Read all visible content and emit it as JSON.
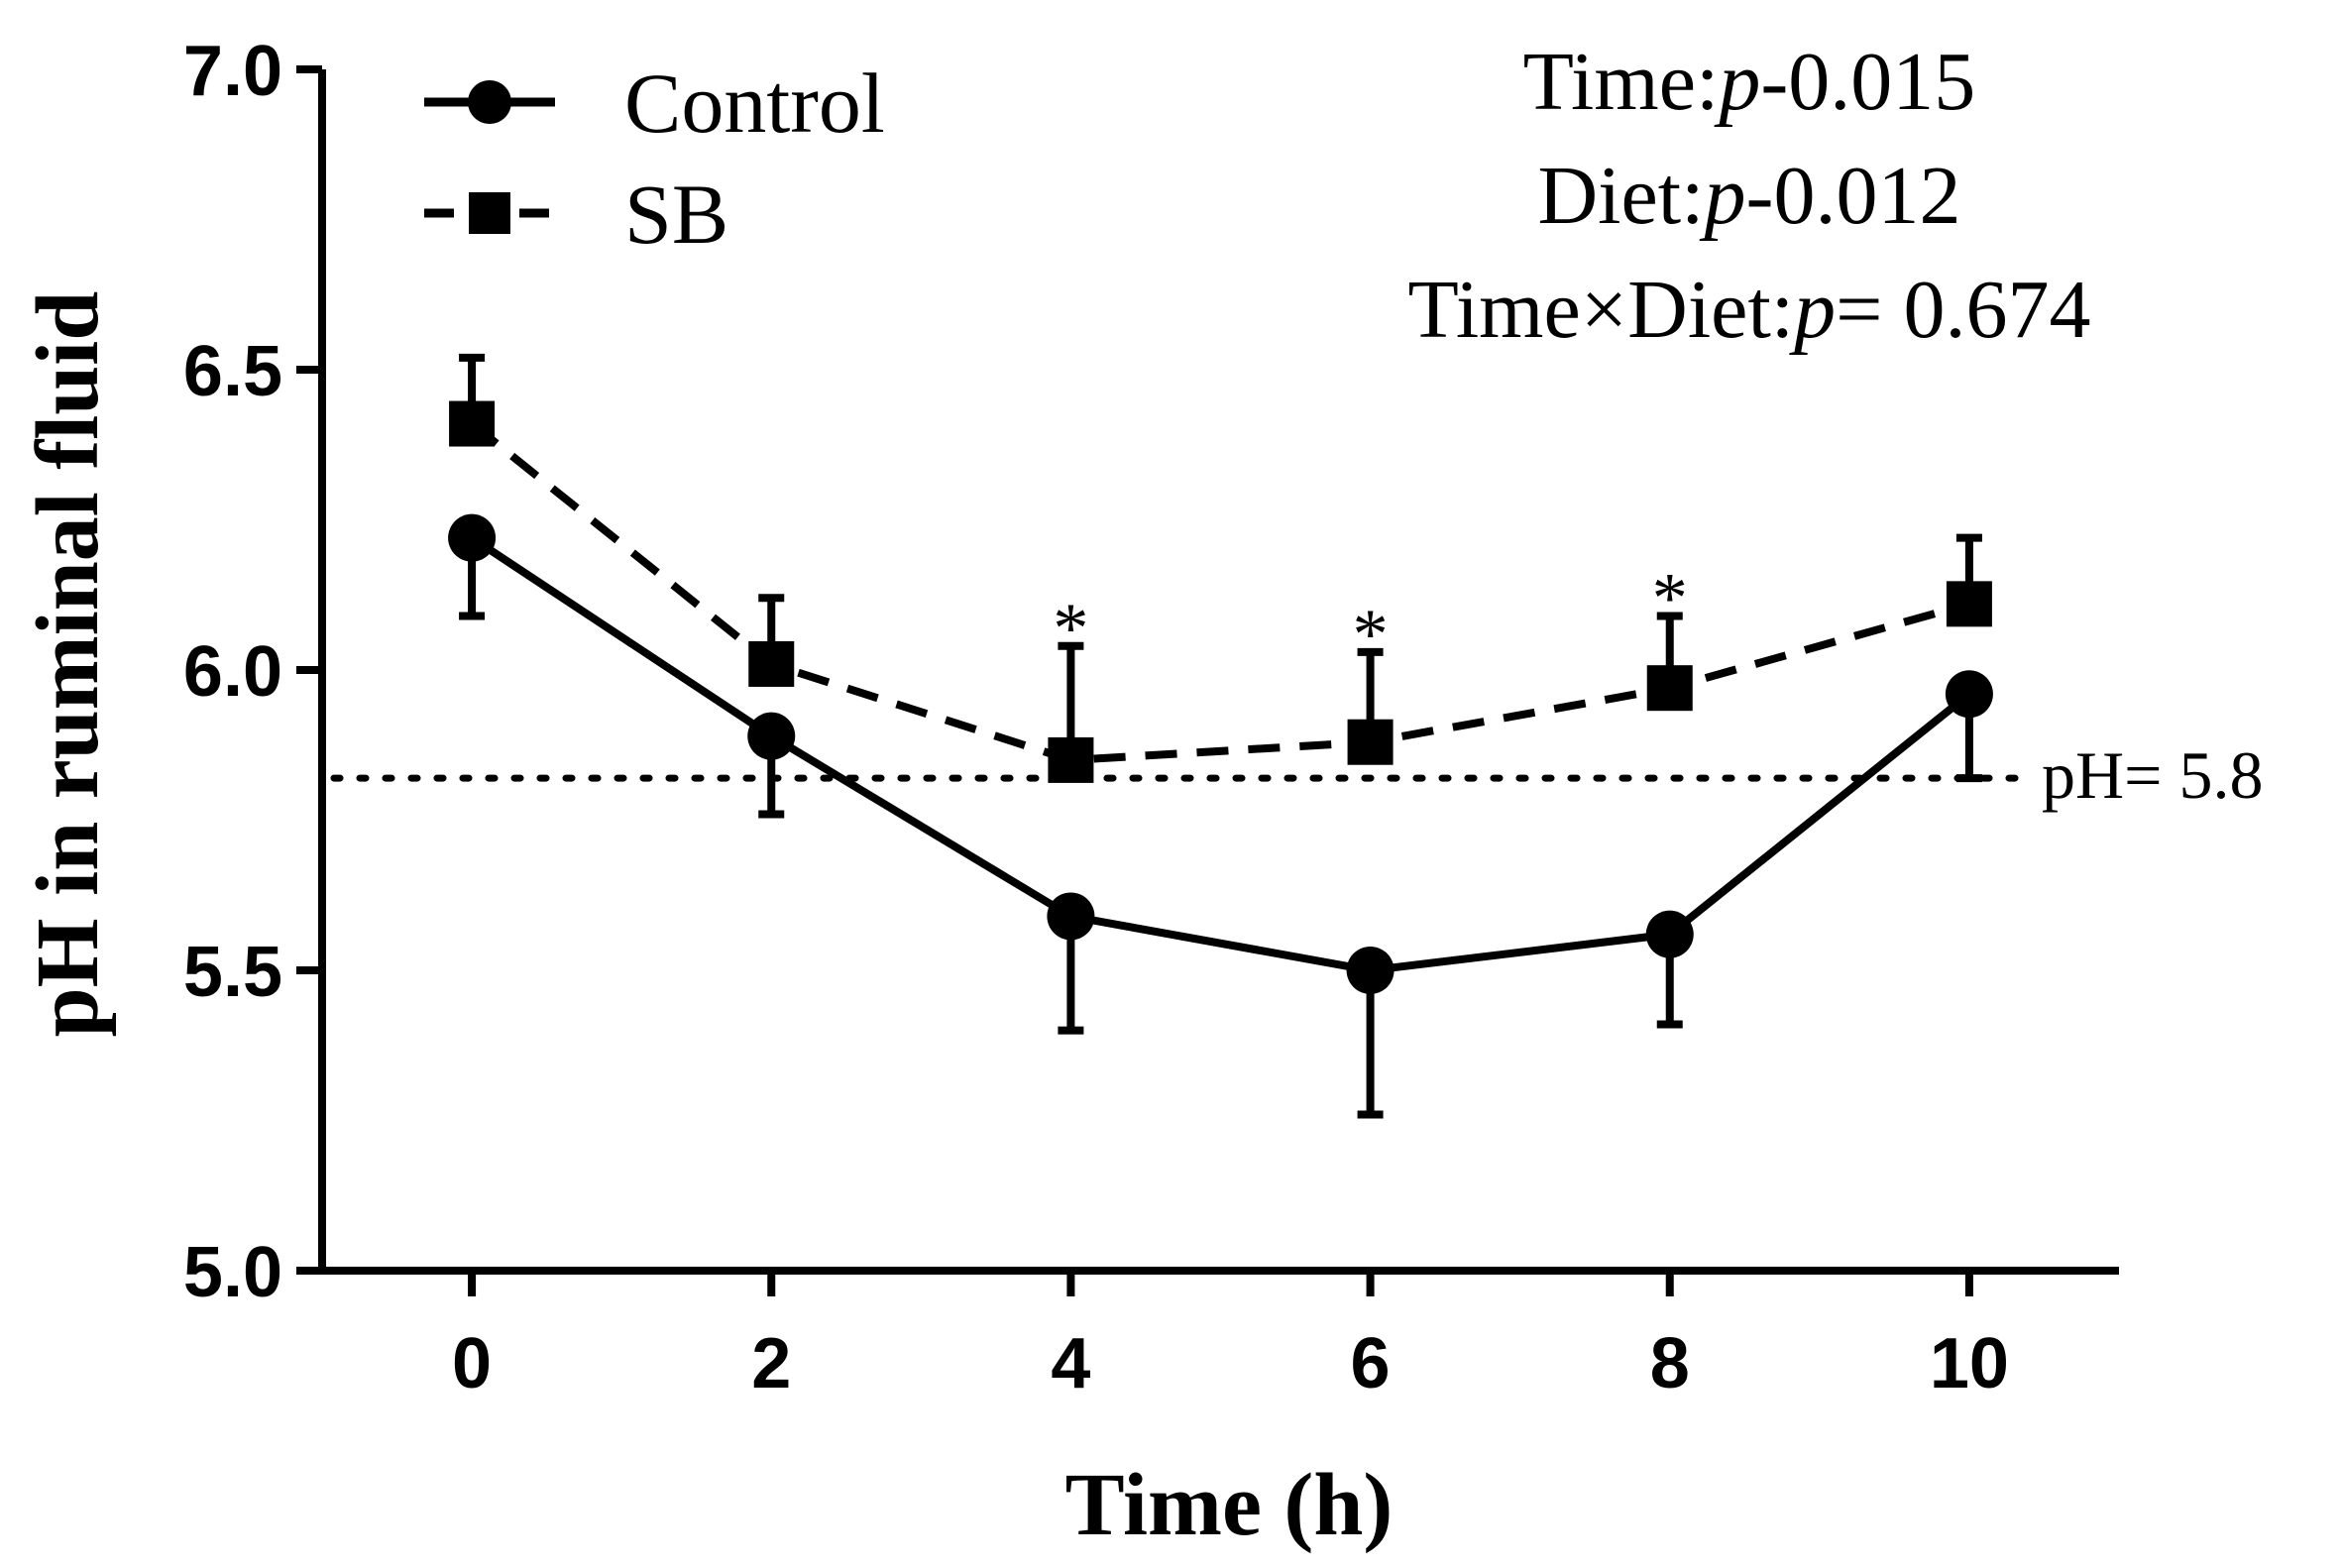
{
  "chart_data": {
    "type": "line",
    "title": "",
    "xlabel": "Time (h)",
    "ylabel": "pH in ruminal fluid",
    "x": [
      0,
      2,
      4,
      6,
      8,
      10
    ],
    "x_tick_labels": [
      "0",
      "2",
      "4",
      "6",
      "8",
      "10"
    ],
    "xlim": [
      -1,
      11
    ],
    "ylim": [
      5.0,
      7.0
    ],
    "y_ticks": [
      5.0,
      5.5,
      6.0,
      6.5,
      7.0
    ],
    "y_tick_labels": [
      "5.0",
      "5.5",
      "6.0",
      "6.5",
      "7.0"
    ],
    "grid": false,
    "legend_position": "top-left",
    "series": [
      {
        "name": "Control",
        "line_style": "solid",
        "marker": "circle",
        "values": [
          6.22,
          5.89,
          5.59,
          5.5,
          5.56,
          5.96
        ],
        "error": [
          0.13,
          0.13,
          0.19,
          0.24,
          0.15,
          0.14
        ],
        "error_direction": "down"
      },
      {
        "name": "SB",
        "line_style": "dashed",
        "marker": "square",
        "values": [
          6.41,
          6.01,
          5.85,
          5.88,
          5.97,
          6.11
        ],
        "error": [
          0.11,
          0.11,
          0.19,
          0.15,
          0.12,
          0.11
        ],
        "error_direction": "up"
      }
    ],
    "reference_line": {
      "y": 5.82,
      "label": "pH= 5.8",
      "style": "dotted"
    },
    "significance": [
      {
        "x": 4,
        "label": "*"
      },
      {
        "x": 6,
        "label": "*"
      },
      {
        "x": 8,
        "label": "*"
      }
    ],
    "annotations": [
      {
        "prefix": "Time:",
        "p": "p",
        "suffix": "-0.015"
      },
      {
        "prefix": "Diet:",
        "p": "p",
        "suffix": "-0.012"
      },
      {
        "prefix": "Time×Diet:",
        "p": "p",
        "suffix": "= 0.674"
      }
    ]
  }
}
